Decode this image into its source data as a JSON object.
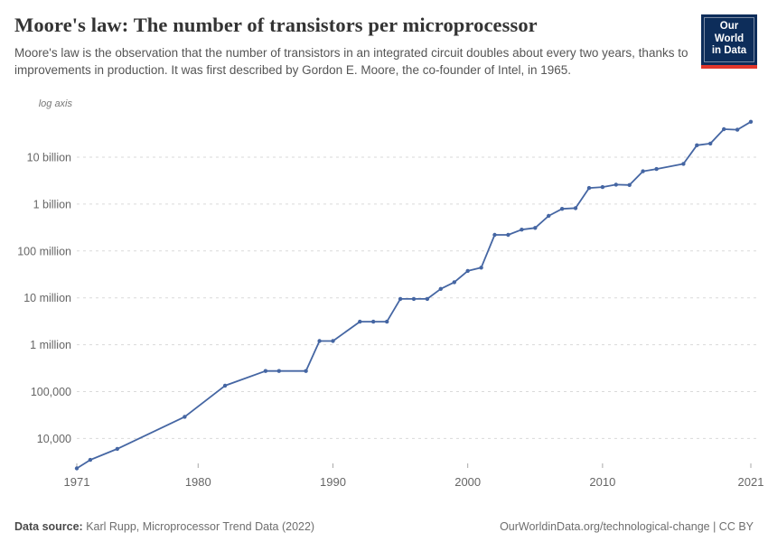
{
  "header": {
    "title": "Moore's law: The number of transistors per microprocessor",
    "subtitle": "Moore's law is the observation that the number of transistors in an integrated circuit doubles about every two years, thanks to improvements in production. It was first described by Gordon E. Moore, the co-founder of Intel, in 1965.",
    "logo": {
      "line1": "Our World",
      "line2": "in Data",
      "bg_color": "#0d2d5a",
      "accent_color": "#e2372b"
    }
  },
  "chart_data": {
    "type": "line",
    "title": "Moore's law: The number of transistors per microprocessor",
    "axis_note": "log axis",
    "y_scale": "log",
    "grid": "horizontal-dashed",
    "legend_position": "none",
    "line_color": "#4566a3",
    "xlim": [
      1971,
      2021
    ],
    "ylim": [
      2000,
      65000000000
    ],
    "x_ticks": [
      1971,
      1980,
      1990,
      2000,
      2010,
      2021
    ],
    "y_ticks": [
      {
        "value": 10000,
        "label": "10,000"
      },
      {
        "value": 100000,
        "label": "100,000"
      },
      {
        "value": 1000000,
        "label": "1 million"
      },
      {
        "value": 10000000,
        "label": "10 million"
      },
      {
        "value": 100000000,
        "label": "100 million"
      },
      {
        "value": 1000000000,
        "label": "1 billion"
      },
      {
        "value": 10000000000,
        "label": "10 billion"
      }
    ],
    "x": [
      1971,
      1972,
      1974,
      1979,
      1982,
      1985,
      1986,
      1988,
      1989,
      1990,
      1992,
      1993,
      1994,
      1995,
      1996,
      1997,
      1998,
      1999,
      2000,
      2001,
      2002,
      2003,
      2004,
      2005,
      2006,
      2007,
      2008,
      2009,
      2010,
      2011,
      2012,
      2013,
      2014,
      2016,
      2017,
      2018,
      2019,
      2020,
      2021
    ],
    "series": [
      {
        "name": "Transistors per microprocessor",
        "values": [
          2300,
          3500,
          6000,
          29000,
          134000,
          275000,
          275000,
          275000,
          1200000,
          1200000,
          3100000,
          3100000,
          3100000,
          9500000,
          9500000,
          9500000,
          15500000,
          21500000,
          37500000,
          44000000,
          220000000,
          220000000,
          285000000,
          310000000,
          560000000,
          790000000,
          820000000,
          2200000000,
          2300000000,
          2600000000,
          2550000000,
          5000000000,
          5600000000,
          7200000000,
          18000000000,
          19500000000,
          39500000000,
          38500000000,
          57000000000
        ]
      }
    ]
  },
  "footer": {
    "source_label": "Data source:",
    "source_text": " Karl Rupp, Microprocessor Trend Data (2022)",
    "link_text": "OurWorldinData.org/technological-change | CC BY"
  }
}
